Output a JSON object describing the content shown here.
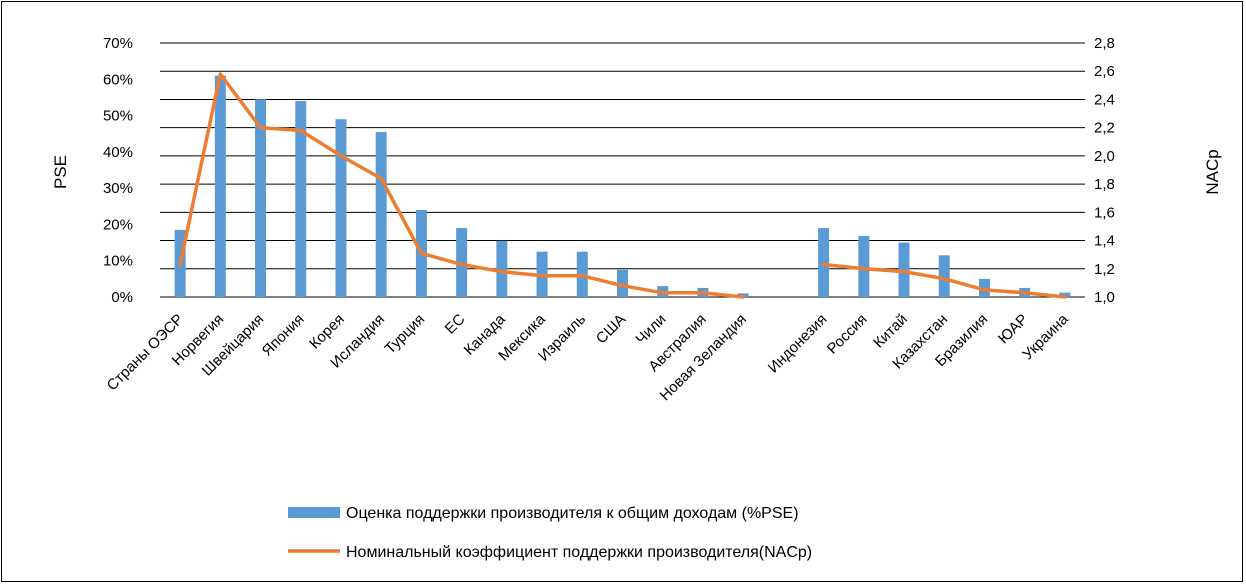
{
  "chart_data": {
    "type": "bar+line",
    "categories": [
      "Страны ОЭСР",
      "Норвегия",
      "Швейцария",
      "Япония",
      "Корея",
      "Исландия",
      "Турция",
      "ЕС",
      "Канада",
      "Мексика",
      "Израиль",
      "США",
      "Чили",
      "Австралия",
      "Новая Зеландия",
      "",
      "Индонезия",
      "Россия",
      "Китай",
      "Казахстан",
      "Бразилия",
      "ЮАР",
      "Украина"
    ],
    "series": [
      {
        "name": "Оценка поддержки производителя к общим доходам (%PSE)",
        "kind": "bar",
        "axis": "left",
        "color": "#5b9bd5",
        "values": [
          18.5,
          61,
          54.5,
          54,
          49,
          45.5,
          24,
          19,
          15.5,
          12.5,
          12.5,
          7.5,
          3,
          2.5,
          1,
          null,
          19,
          16.8,
          15,
          11.5,
          5,
          2.5,
          1.2
        ]
      },
      {
        "name": "Номинальный коэффициент поддержки производителя(NACp)",
        "kind": "line",
        "axis": "right",
        "color": "#ed7d31",
        "values": [
          1.23,
          2.58,
          2.2,
          2.18,
          2.0,
          1.84,
          1.31,
          1.23,
          1.18,
          1.15,
          1.15,
          1.08,
          1.03,
          1.03,
          1.0,
          null,
          1.23,
          1.2,
          1.18,
          1.13,
          1.05,
          1.03,
          1.0
        ]
      }
    ],
    "ylabel": "PSE",
    "y2label": "NACp",
    "ylim": [
      0,
      70
    ],
    "y2lim": [
      1.0,
      2.8
    ],
    "yticks": [
      "0%",
      "10%",
      "20%",
      "30%",
      "40%",
      "50%",
      "60%",
      "70%"
    ],
    "y2ticks": [
      "1,0",
      "1,2",
      "1,4",
      "1,6",
      "1,8",
      "2,0",
      "2,2",
      "2,4",
      "2,6",
      "2,8"
    ],
    "grid": true,
    "legend_position": "bottom"
  }
}
